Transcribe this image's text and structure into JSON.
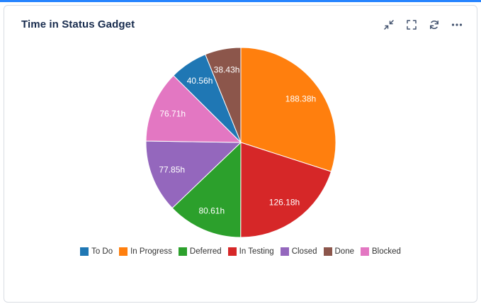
{
  "page": {
    "top_strip_color": "#2684ff"
  },
  "card": {
    "title": "Time in Status Gadget"
  },
  "toolbar": {
    "icons": [
      "minimize-icon",
      "fullscreen-icon",
      "refresh-icon",
      "more-options-icon"
    ]
  },
  "chart_data": {
    "type": "pie",
    "title": "Time in Status Gadget",
    "unit": "h",
    "start_angle": "top",
    "direction": "clockwise",
    "label_color": "#ffffff",
    "slices": [
      {
        "label": "In Progress",
        "value": 188.38,
        "display": "188.38h",
        "color": "#ff7f0e"
      },
      {
        "label": "In Testing",
        "value": 126.18,
        "display": "126.18h",
        "color": "#d62728"
      },
      {
        "label": "Deferred",
        "value": 80.61,
        "display": "80.61h",
        "color": "#2ca02c"
      },
      {
        "label": "Closed",
        "value": 77.85,
        "display": "77.85h",
        "color": "#9467bd"
      },
      {
        "label": "Blocked",
        "value": 76.71,
        "display": "76.71h",
        "color": "#e377c2"
      },
      {
        "label": "To Do",
        "value": 40.56,
        "display": "40.56h",
        "color": "#1f77b4"
      },
      {
        "label": "Done",
        "value": 38.43,
        "display": "38.43h",
        "color": "#8c564b"
      }
    ],
    "legend": {
      "position": "bottom",
      "order": [
        "To Do",
        "In Progress",
        "Deferred",
        "In Testing",
        "Closed",
        "Done",
        "Blocked"
      ]
    }
  }
}
